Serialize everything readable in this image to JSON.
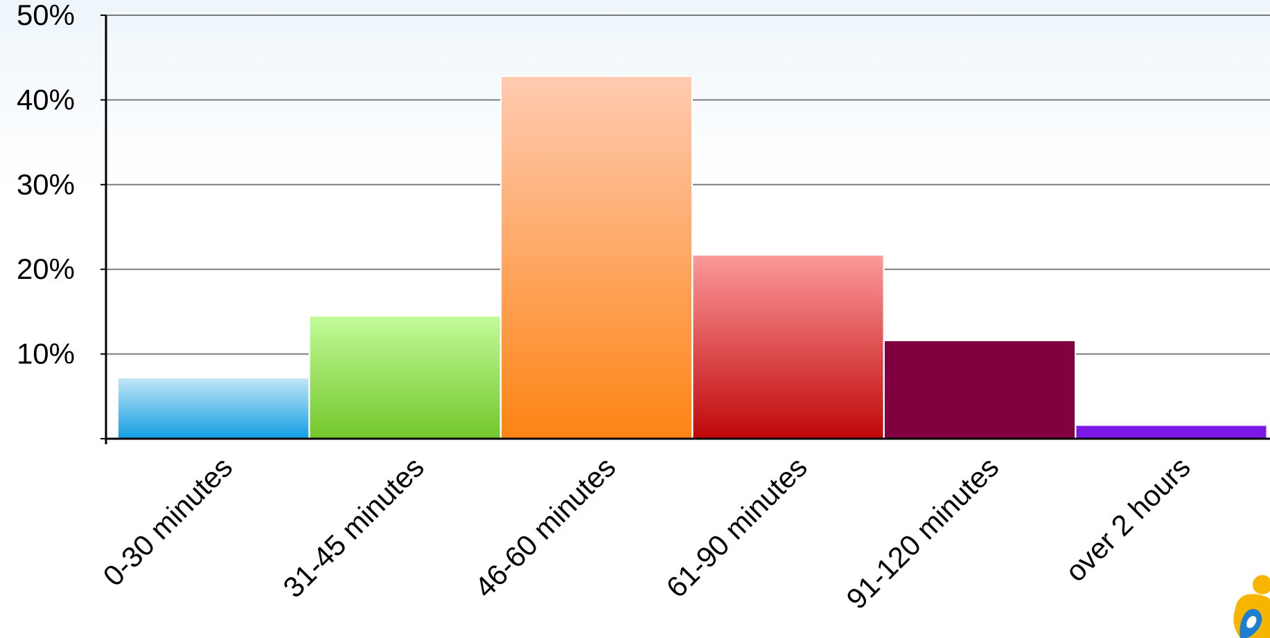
{
  "chart_data": {
    "type": "bar",
    "title": "",
    "xlabel": "",
    "ylabel": "",
    "ylim": [
      0,
      50
    ],
    "yticks": [
      10,
      20,
      30,
      40,
      50
    ],
    "ytick_labels": [
      "10%",
      "20%",
      "30%",
      "40%",
      "50%"
    ],
    "grid": true,
    "categories": [
      "0-30 minutes",
      "31-45 minutes",
      "46-60 minutes",
      "61-90 minutes",
      "91-120 minutes",
      "over 2 hours"
    ],
    "values": [
      7.2,
      14.5,
      42.8,
      21.7,
      11.6,
      1.6
    ],
    "colors": [
      [
        "#c4e6f8",
        "#129ee3"
      ],
      [
        "#c2fb98",
        "#73c72c"
      ],
      [
        "#ffcbb2",
        "#fd8414"
      ],
      [
        "#fc9a9a",
        "#c00709"
      ],
      [
        "#81003f",
        "#81003f"
      ],
      [
        "#7c18e6",
        "#7c18e6"
      ]
    ]
  },
  "logo": {
    "icon": "person-logo-icon"
  }
}
